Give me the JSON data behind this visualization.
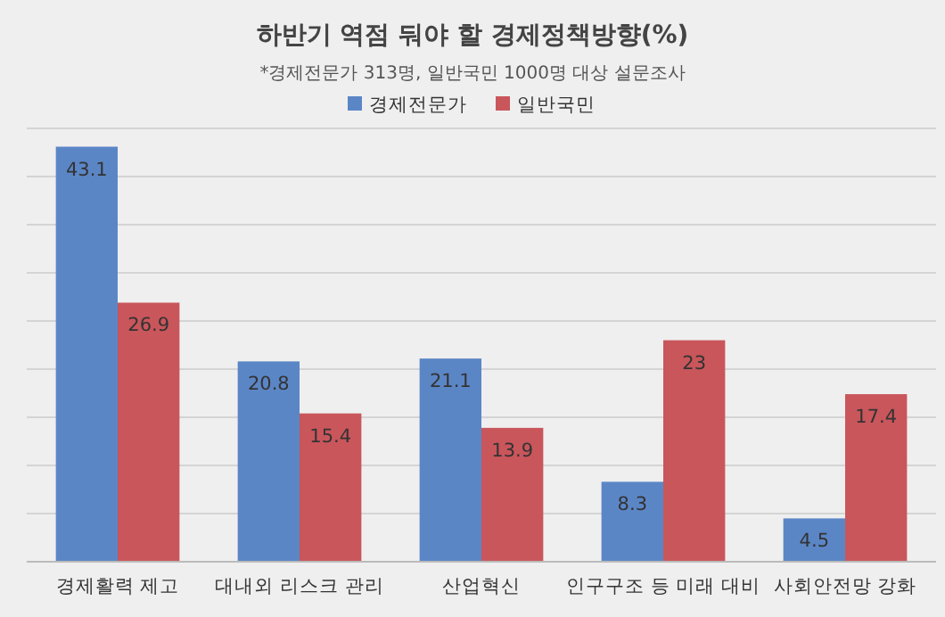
{
  "chart_data": {
    "type": "bar",
    "title": "하반기 역점 둬야 할 경제정책방향(%)",
    "subtitle": "*경제전문가 313명, 일반국민 1000명 대상 설문조사",
    "categories": [
      "경제활력 제고",
      "대내외 리스크 관리",
      "산업혁신",
      "인구구조 등 미래 대비",
      "사회안전망 강화"
    ],
    "series": [
      {
        "name": "경제전문가",
        "color": "#5b86c6",
        "values": [
          43.1,
          20.8,
          21.1,
          8.3,
          4.5
        ]
      },
      {
        "name": "일반국민",
        "color": "#c9565b",
        "values": [
          26.9,
          15.4,
          13.9,
          23,
          17.4
        ]
      }
    ],
    "ylim": [
      0,
      45
    ],
    "yticks": [
      {
        "value": 0,
        "label": null
      },
      {
        "value": 5,
        "label": null
      },
      {
        "value": 10,
        "label": null
      },
      {
        "value": 15,
        "label": null
      },
      {
        "value": 20,
        "label": null
      },
      {
        "value": 25,
        "label": null
      },
      {
        "value": 30,
        "label": null
      },
      {
        "value": 35,
        "label": null
      },
      {
        "value": 40,
        "label": null
      },
      {
        "value": 45,
        "label": null
      }
    ],
    "tick_labels": "x",
    "grid": "y",
    "legend": "top",
    "data_labels": true
  }
}
